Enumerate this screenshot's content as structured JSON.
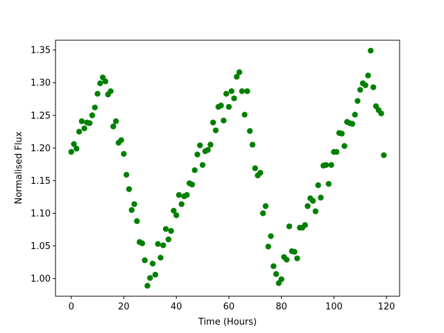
{
  "chart_data": {
    "type": "scatter",
    "xlabel": "Time (Hours)",
    "ylabel": "Normalised Flux",
    "xlim": [
      -6,
      125
    ],
    "ylim": [
      0.973,
      1.365
    ],
    "xticks": [
      0,
      20,
      40,
      60,
      80,
      100,
      120
    ],
    "xtick_labels": [
      "0",
      "20",
      "40",
      "60",
      "80",
      "100",
      "120"
    ],
    "yticks": [
      1.0,
      1.05,
      1.1,
      1.15,
      1.2,
      1.25,
      1.3,
      1.35
    ],
    "ytick_labels": [
      "1.00",
      "1.05",
      "1.10",
      "1.15",
      "1.20",
      "1.25",
      "1.30",
      "1.35"
    ],
    "grid": false,
    "marker_color": "#008000",
    "points": [
      [
        0.0,
        1.194
      ],
      [
        1.0,
        1.206
      ],
      [
        2.0,
        1.199
      ],
      [
        3.0,
        1.225
      ],
      [
        4.0,
        1.241
      ],
      [
        5.0,
        1.23
      ],
      [
        6.0,
        1.239
      ],
      [
        7.0,
        1.238
      ],
      [
        8.0,
        1.25
      ],
      [
        9.0,
        1.262
      ],
      [
        10.0,
        1.283
      ],
      [
        11.0,
        1.299
      ],
      [
        12.0,
        1.308
      ],
      [
        13.0,
        1.302
      ],
      [
        14.0,
        1.282
      ],
      [
        15.0,
        1.287
      ],
      [
        16.0,
        1.233
      ],
      [
        17.0,
        1.241
      ],
      [
        18.0,
        1.208
      ],
      [
        19.0,
        1.212
      ],
      [
        20.0,
        1.191
      ],
      [
        21.0,
        1.159
      ],
      [
        22.0,
        1.137
      ],
      [
        23.0,
        1.105
      ],
      [
        24.0,
        1.114
      ],
      [
        25.0,
        1.088
      ],
      [
        26.0,
        1.056
      ],
      [
        27.0,
        1.054
      ],
      [
        28.0,
        1.028
      ],
      [
        29.0,
        0.989
      ],
      [
        30.0,
        1.001
      ],
      [
        31.0,
        1.023
      ],
      [
        32.0,
        1.006
      ],
      [
        33.0,
        1.053
      ],
      [
        34.0,
        1.032
      ],
      [
        35.0,
        1.051
      ],
      [
        36.0,
        1.076
      ],
      [
        37.0,
        1.06
      ],
      [
        38.0,
        1.073
      ],
      [
        39.0,
        1.104
      ],
      [
        40.0,
        1.097
      ],
      [
        41.0,
        1.128
      ],
      [
        42.0,
        1.114
      ],
      [
        43.0,
        1.126
      ],
      [
        44.0,
        1.128
      ],
      [
        45.0,
        1.146
      ],
      [
        46.0,
        1.144
      ],
      [
        47.0,
        1.166
      ],
      [
        48.0,
        1.19
      ],
      [
        49.0,
        1.204
      ],
      [
        50.0,
        1.174
      ],
      [
        51.0,
        1.195
      ],
      [
        52.0,
        1.197
      ],
      [
        53.0,
        1.205
      ],
      [
        54.0,
        1.239
      ],
      [
        55.0,
        1.227
      ],
      [
        56.0,
        1.263
      ],
      [
        57.0,
        1.265
      ],
      [
        58.0,
        1.242
      ],
      [
        59.0,
        1.283
      ],
      [
        60.0,
        1.263
      ],
      [
        61.0,
        1.287
      ],
      [
        62.0,
        1.276
      ],
      [
        63.0,
        1.309
      ],
      [
        64.0,
        1.316
      ],
      [
        65.0,
        1.287
      ],
      [
        66.0,
        1.251
      ],
      [
        67.0,
        1.287
      ],
      [
        68.0,
        1.226
      ],
      [
        69.0,
        1.205
      ],
      [
        70.0,
        1.169
      ],
      [
        71.0,
        1.158
      ],
      [
        72.0,
        1.162
      ],
      [
        73.0,
        1.1
      ],
      [
        74.0,
        1.111
      ],
      [
        75.0,
        1.049
      ],
      [
        76.0,
        1.065
      ],
      [
        77.0,
        1.019
      ],
      [
        78.0,
        1.007
      ],
      [
        79.0,
        0.993
      ],
      [
        80.0,
        0.999
      ],
      [
        81.0,
        1.033
      ],
      [
        82.0,
        1.029
      ],
      [
        83.0,
        1.08
      ],
      [
        84.0,
        1.042
      ],
      [
        85.0,
        1.041
      ],
      [
        86.0,
        1.031
      ],
      [
        87.0,
        1.078
      ],
      [
        88.0,
        1.078
      ],
      [
        89.0,
        1.082
      ],
      [
        90.0,
        1.111
      ],
      [
        91.0,
        1.123
      ],
      [
        92.0,
        1.119
      ],
      [
        93.0,
        1.103
      ],
      [
        94.0,
        1.143
      ],
      [
        95.0,
        1.124
      ],
      [
        96.0,
        1.173
      ],
      [
        97.0,
        1.174
      ],
      [
        98.0,
        1.145
      ],
      [
        99.0,
        1.174
      ],
      [
        100.0,
        1.194
      ],
      [
        101.0,
        1.194
      ],
      [
        102.0,
        1.223
      ],
      [
        103.0,
        1.222
      ],
      [
        104.0,
        1.203
      ],
      [
        105.0,
        1.24
      ],
      [
        106.0,
        1.238
      ],
      [
        107.0,
        1.237
      ],
      [
        108.0,
        1.251
      ],
      [
        109.0,
        1.272
      ],
      [
        110.0,
        1.289
      ],
      [
        111.0,
        1.299
      ],
      [
        112.0,
        1.296
      ],
      [
        113.0,
        1.311
      ],
      [
        114.0,
        1.349
      ],
      [
        115.0,
        1.293
      ],
      [
        116.0,
        1.264
      ],
      [
        117.0,
        1.258
      ],
      [
        118.0,
        1.253
      ],
      [
        119.0,
        1.189
      ]
    ]
  }
}
